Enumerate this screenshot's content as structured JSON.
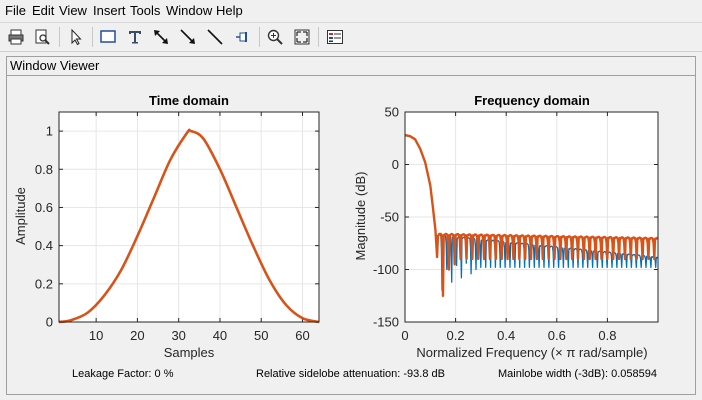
{
  "menu": [
    "File",
    "Edit",
    "View",
    "Insert",
    "Tools",
    "Window",
    "Help"
  ],
  "toolbar": {
    "icons": [
      "print-icon",
      "print-preview-icon",
      "select-pointer-icon",
      "insert-rectangle-icon",
      "insert-text-icon",
      "insert-double-arrow-icon",
      "insert-arrow-icon",
      "insert-line-icon",
      "pin-icon",
      "zoom-in-icon",
      "fit-to-view-icon",
      "legend-icon"
    ]
  },
  "panel": {
    "title": "Window Viewer"
  },
  "colors": {
    "series_blue": "#0072bd",
    "series_orange": "#d95319",
    "grid": "#e6e6e6",
    "axes": "#262626"
  },
  "chart_data": [
    {
      "type": "line",
      "title": "Time domain",
      "xlabel": "Samples",
      "ylabel": "Amplitude",
      "xlim": [
        1,
        64
      ],
      "ylim": [
        0,
        1.1
      ],
      "xticks": [
        10,
        20,
        30,
        40,
        50,
        60
      ],
      "yticks": [
        0,
        0.2,
        0.4,
        0.6,
        0.8,
        1
      ],
      "ytick_labels": [
        "0",
        "0.2",
        "0.4",
        "0.6",
        "0.8",
        "1"
      ],
      "grid": true,
      "series": [
        {
          "color": "#d95319",
          "x": [
            1,
            4,
            8,
            12,
            16,
            20,
            24,
            28,
            32,
            33,
            36,
            40,
            44,
            48,
            52,
            56,
            60,
            64
          ],
          "y": [
            0.0,
            0.01,
            0.05,
            0.14,
            0.27,
            0.45,
            0.65,
            0.85,
            0.99,
            1.0,
            0.96,
            0.8,
            0.6,
            0.4,
            0.22,
            0.09,
            0.02,
            0.0
          ]
        }
      ]
    },
    {
      "type": "line",
      "title": "Frequency domain",
      "xlabel": "Normalized Frequency  (× π rad/sample)",
      "ylabel": "Magnitude (dB)",
      "xlim": [
        0,
        1
      ],
      "ylim": [
        -150,
        50
      ],
      "xticks": [
        0,
        0.2,
        0.4,
        0.6,
        0.8
      ],
      "yticks": [
        -150,
        -100,
        -50,
        0,
        50
      ],
      "xtick_labels": [
        "0",
        "0.2",
        "0.4",
        "0.6",
        "0.8"
      ],
      "ytick_labels": [
        "-150",
        "-100",
        "-50",
        "0",
        "50"
      ],
      "grid": true,
      "series": [
        {
          "color": "#0072bd",
          "mainlobe": {
            "x": [
              0,
              0.02,
              0.04,
              0.06,
              0.08,
              0.1,
              0.11,
              0.12,
              0.127
            ],
            "y": [
              28,
              27,
              24,
              15,
              2,
              -20,
              -40,
              -62,
              -88
            ]
          },
          "sidelobes": {
            "start": 0.127,
            "end": 1.0,
            "lobe_width": 0.0192,
            "peak_start": -67,
            "peak_end": -88,
            "null_depths": [
              -120,
              -100,
              -112,
              -96,
              -108,
              -94,
              -104,
              -100,
              -98
            ]
          }
        },
        {
          "color": "#d95319",
          "mainlobe": {
            "x": [
              0,
              0.02,
              0.04,
              0.06,
              0.08,
              0.1,
              0.11,
              0.12,
              0.127
            ],
            "y": [
              28,
              27,
              24,
              15,
              2,
              -20,
              -40,
              -62,
              -88
            ]
          },
          "sidelobes": {
            "start": 0.127,
            "end": 1.0,
            "lobe_width": 0.0232,
            "peak_start": -66,
            "peak_end": -70,
            "null_depths": [
              -125,
              -100,
              -95,
              -90,
              -90,
              -90,
              -90,
              -90,
              -90
            ]
          }
        }
      ]
    }
  ],
  "status": {
    "leakage": "Leakage Factor: 0 %",
    "sidelobe": "Relative sidelobe attenuation: -93.8 dB",
    "mainlobe": "Mainlobe width (-3dB): 0.058594"
  }
}
